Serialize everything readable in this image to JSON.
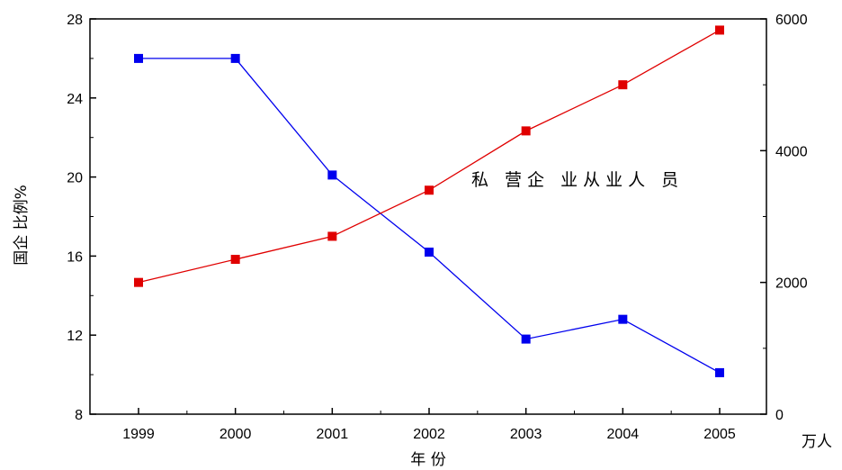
{
  "chart_data": {
    "type": "line",
    "title": "",
    "xlabel": "年 份",
    "ylabel_left": "国企 比例%",
    "ylabel_right": "万人",
    "annotation": "私 营企 业从业人 员",
    "categories": [
      "1999",
      "2000",
      "2001",
      "2002",
      "2003",
      "2004",
      "2005"
    ],
    "y_left": {
      "range": [
        8,
        28
      ],
      "ticks": [
        "8",
        "12",
        "16",
        "20",
        "24",
        "28"
      ]
    },
    "y_right": {
      "range": [
        0,
        6000
      ],
      "ticks": [
        "0",
        "2000",
        "4000",
        "6000"
      ]
    },
    "series": [
      {
        "axis": "left",
        "color": "#0000ee",
        "marker": "square",
        "values": [
          26.0,
          26.0,
          20.1,
          16.2,
          11.8,
          12.8,
          10.1
        ]
      },
      {
        "axis": "right",
        "color": "#e00000",
        "marker": "square",
        "values": [
          2000,
          2350,
          2700,
          3400,
          4300,
          5000,
          5830
        ]
      }
    ],
    "grid": false,
    "legend": "none"
  }
}
